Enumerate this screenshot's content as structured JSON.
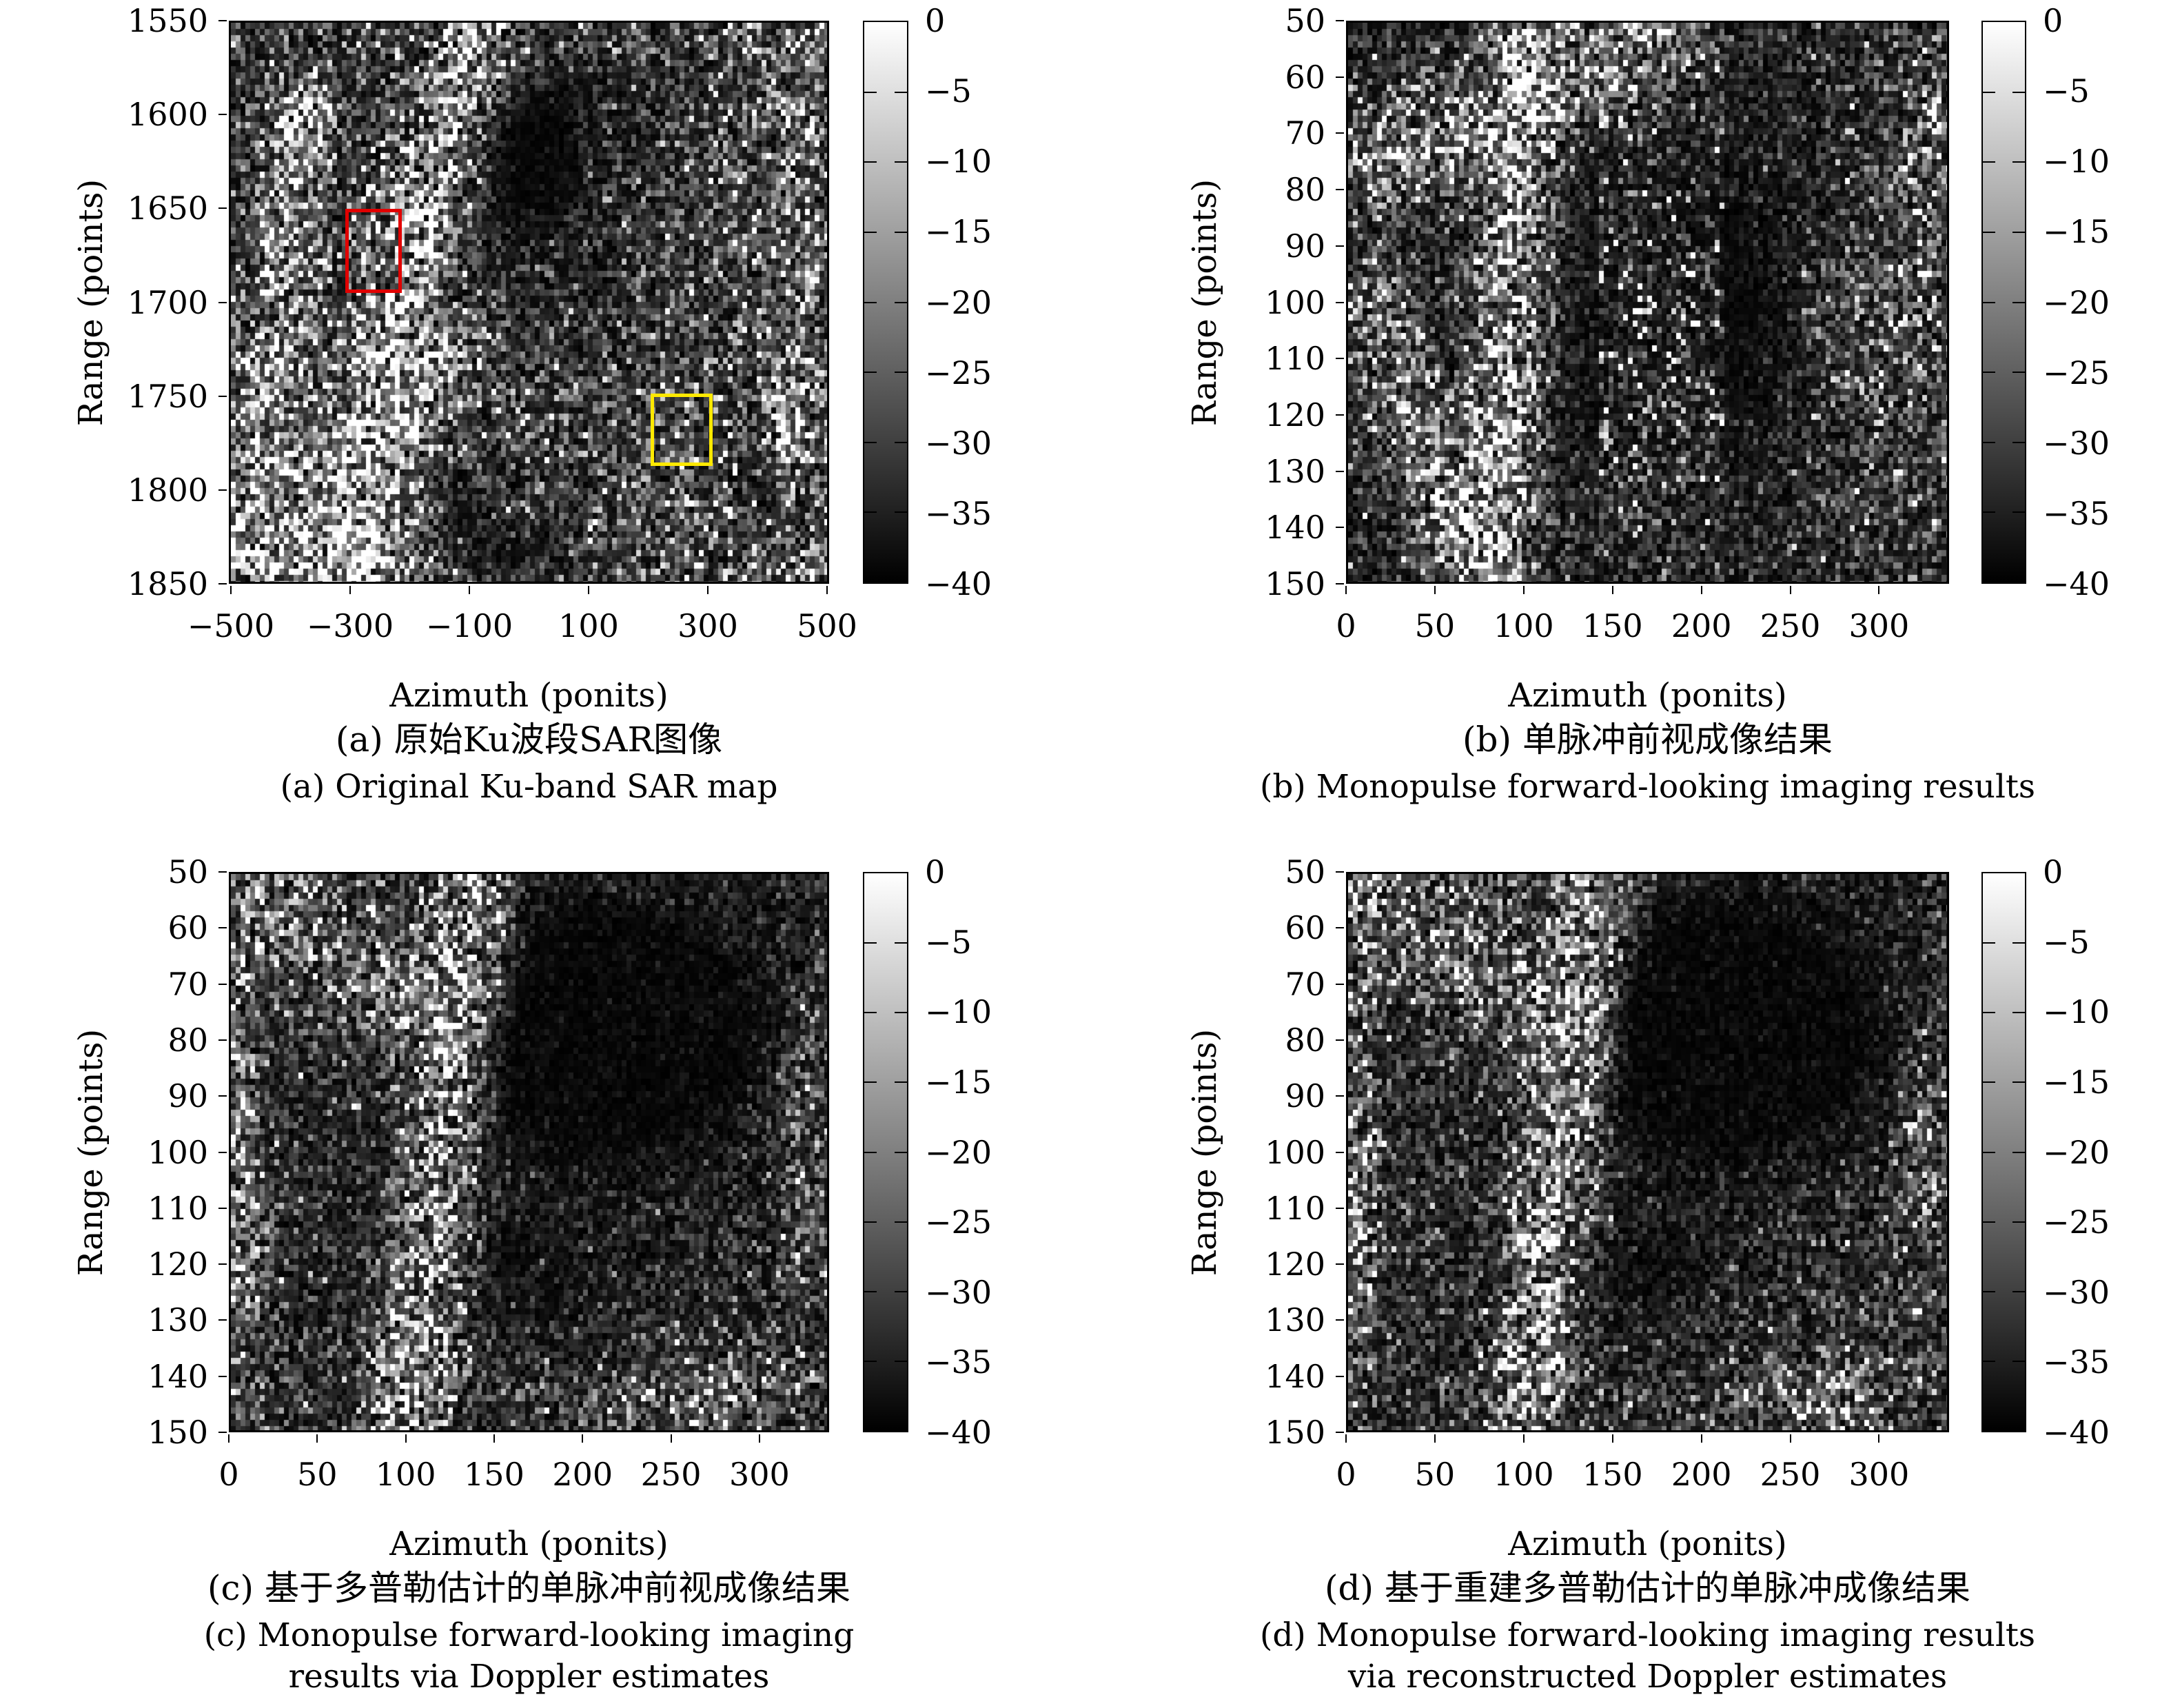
{
  "chart_data": {
    "type": "heatmap",
    "description_visible": "Four grayscale SAR intensity maps with colorbars",
    "colorbar": {
      "ticks": [
        "0",
        "−5",
        "−10",
        "−15",
        "−20",
        "−25",
        "−30",
        "−35",
        "−40"
      ],
      "range_db": [
        0,
        -40
      ],
      "top_color": "#ffffff",
      "bottom_color": "#000000"
    },
    "panels": [
      {
        "id": "a",
        "xlabel": "Azimuth (ponits)",
        "ylabel": "Range (points)",
        "xticks": [
          "−500",
          "−300",
          "−100",
          "100",
          "300",
          "500"
        ],
        "xtick_values": [
          -500,
          -300,
          -100,
          100,
          300,
          500
        ],
        "x_range": [
          -503.5,
          503.5
        ],
        "yticks": [
          "1550",
          "1600",
          "1650",
          "1700",
          "1750",
          "1800",
          "1850"
        ],
        "y_range": [
          1550,
          1850
        ],
        "caption_zh": "(a) 原始Ku波段SAR图像",
        "caption_en_lines": [
          "(a) Original Ku-band SAR map"
        ],
        "annotations": [
          {
            "name": "red-box",
            "color": "#e10000",
            "azimuth": [
              -310,
              -215
            ],
            "range": [
              1650,
              1695
            ]
          },
          {
            "name": "yellow-box",
            "color": "#ffe900",
            "azimuth": [
              206,
              310
            ],
            "range": [
              1749,
              1788
            ]
          }
        ]
      },
      {
        "id": "b",
        "xlabel": "Azimuth (ponits)",
        "ylabel": "Range (points)",
        "xticks": [
          "0",
          "50",
          "100",
          "150",
          "200",
          "250",
          "300"
        ],
        "xtick_values": [
          0,
          50,
          100,
          150,
          200,
          250,
          300
        ],
        "x_range": [
          0,
          339.4
        ],
        "yticks": [
          "50",
          "60",
          "70",
          "80",
          "90",
          "100",
          "110",
          "120",
          "130",
          "140",
          "150"
        ],
        "y_range": [
          50,
          150
        ],
        "caption_zh": "(b) 单脉冲前视成像结果",
        "caption_en_lines": [
          "(b) Monopulse forward-looking imaging results"
        ],
        "annotations": []
      },
      {
        "id": "c",
        "xlabel": "Azimuth (ponits)",
        "ylabel": "Range (points)",
        "xticks": [
          "0",
          "50",
          "100",
          "150",
          "200",
          "250",
          "300"
        ],
        "xtick_values": [
          0,
          50,
          100,
          150,
          200,
          250,
          300
        ],
        "x_range": [
          0,
          339.4
        ],
        "yticks": [
          "50",
          "60",
          "70",
          "80",
          "90",
          "100",
          "110",
          "120",
          "130",
          "140",
          "150"
        ],
        "y_range": [
          50,
          150
        ],
        "caption_zh": "(c) 基于多普勒估计的单脉冲前视成像结果",
        "caption_en_lines": [
          "(c) Monopulse forward-looking imaging",
          "results via Doppler estimates"
        ],
        "annotations": []
      },
      {
        "id": "d",
        "xlabel": "Azimuth (ponits)",
        "ylabel": "Range (points)",
        "xticks": [
          "0",
          "50",
          "100",
          "150",
          "200",
          "250",
          "300"
        ],
        "xtick_values": [
          0,
          50,
          100,
          150,
          200,
          250,
          300
        ],
        "x_range": [
          0,
          339.4
        ],
        "yticks": [
          "50",
          "60",
          "70",
          "80",
          "90",
          "100",
          "110",
          "120",
          "130",
          "140",
          "150"
        ],
        "y_range": [
          50,
          150
        ],
        "caption_zh": "(d) 基于重建多普勒估计的单脉冲成像结果",
        "caption_en_lines": [
          "(d) Monopulse forward-looking imaging results",
          "via reconstructed Doppler estimates"
        ],
        "annotations": []
      }
    ]
  }
}
